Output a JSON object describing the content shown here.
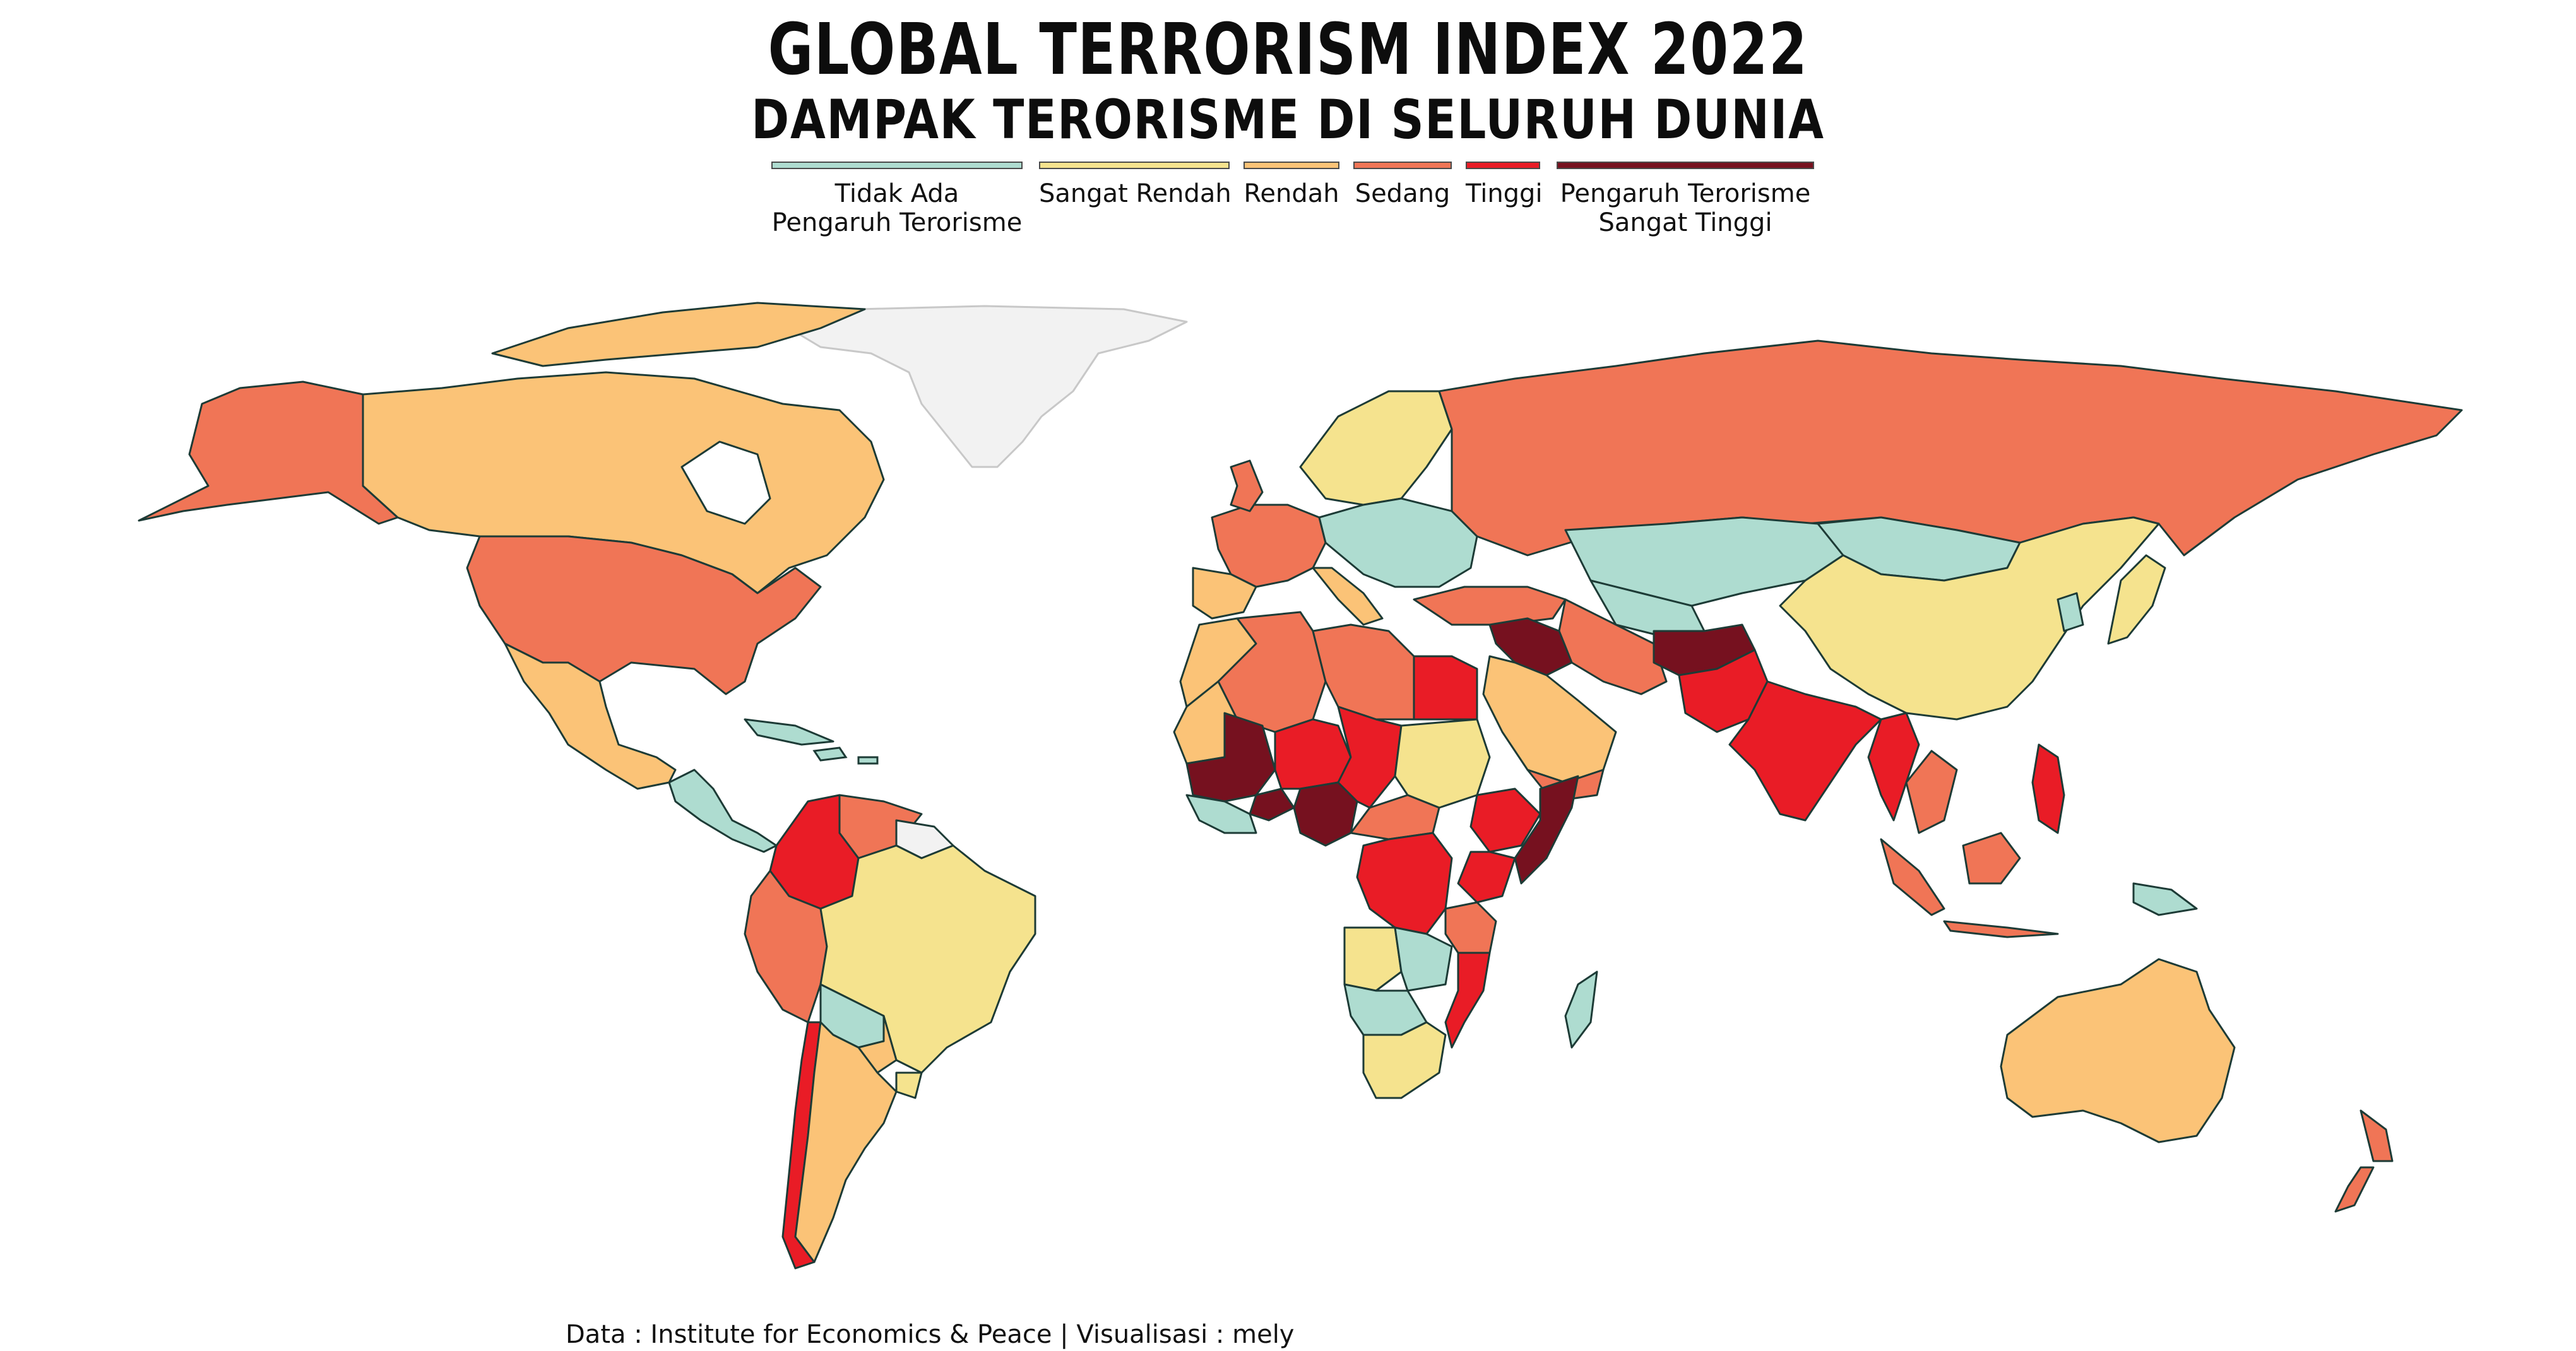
{
  "title": "GLOBAL TERRORISM INDEX 2022",
  "subtitle": "DAMPAK TERORISME DI SELURUH DUNIA",
  "legend": [
    {
      "label": "Tidak Ada\nPengaruh Terorisme",
      "color": "#aedcd0"
    },
    {
      "label": "Sangat Rendah",
      "color": "#f5e38e"
    },
    {
      "label": "Rendah",
      "color": "#fbc377"
    },
    {
      "label": "Sedang",
      "color": "#f07556"
    },
    {
      "label": "Tinggi",
      "color": "#e91c26"
    },
    {
      "label": "Pengaruh Terorisme\nSangat Tinggi",
      "color": "#76111f"
    }
  ],
  "no_data_color": "#f2f2f2",
  "border_color": "#1d3b36",
  "caption": "Data : Institute for Economics & Peace | Visualisasi : mely",
  "regions": [
    {
      "name": "Greenland",
      "level": "no-data"
    },
    {
      "name": "Canada",
      "level": "Rendah"
    },
    {
      "name": "Alaska",
      "level": "Sedang"
    },
    {
      "name": "United States",
      "level": "Sedang"
    },
    {
      "name": "Mexico",
      "level": "Rendah"
    },
    {
      "name": "Central America",
      "level": "Tidak Ada"
    },
    {
      "name": "Colombia",
      "level": "Tinggi"
    },
    {
      "name": "Venezuela",
      "level": "Sedang"
    },
    {
      "name": "Brazil",
      "level": "Sangat Rendah"
    },
    {
      "name": "Peru",
      "level": "Sedang"
    },
    {
      "name": "Bolivia",
      "level": "Tidak Ada"
    },
    {
      "name": "Chile",
      "level": "Tinggi"
    },
    {
      "name": "Argentina",
      "level": "Rendah"
    },
    {
      "name": "Paraguay",
      "level": "Rendah"
    },
    {
      "name": "Uruguay",
      "level": "Sangat Rendah"
    },
    {
      "name": "Russia",
      "level": "Sedang"
    },
    {
      "name": "Kazakhstan",
      "level": "Tidak Ada"
    },
    {
      "name": "Mongolia",
      "level": "Tidak Ada"
    },
    {
      "name": "China",
      "level": "Sangat Rendah"
    },
    {
      "name": "Iraq",
      "level": "Pengaruh Terorisme Sangat Tinggi"
    },
    {
      "name": "Afghanistan",
      "level": "Pengaruh Terorisme Sangat Tinggi"
    },
    {
      "name": "Pakistan",
      "level": "Tinggi"
    },
    {
      "name": "India",
      "level": "Tinggi"
    },
    {
      "name": "Myanmar",
      "level": "Tinggi"
    },
    {
      "name": "Iran",
      "level": "Sedang"
    },
    {
      "name": "Saudi Arabia",
      "level": "Rendah"
    },
    {
      "name": "Turkey",
      "level": "Sedang"
    },
    {
      "name": "Mali",
      "level": "Pengaruh Terorisme Sangat Tinggi"
    },
    {
      "name": "Burkina Faso",
      "level": "Pengaruh Terorisme Sangat Tinggi"
    },
    {
      "name": "Nigeria",
      "level": "Pengaruh Terorisme Sangat Tinggi"
    },
    {
      "name": "Somalia",
      "level": "Pengaruh Terorisme Sangat Tinggi"
    },
    {
      "name": "Niger",
      "level": "Tinggi"
    },
    {
      "name": "Chad",
      "level": "Tinggi"
    },
    {
      "name": "Egypt",
      "level": "Tinggi"
    },
    {
      "name": "Algeria",
      "level": "Sedang"
    },
    {
      "name": "Libya",
      "level": "Sedang"
    },
    {
      "name": "Sudan",
      "level": "Sangat Rendah"
    },
    {
      "name": "DR Congo",
      "level": "Tinggi"
    },
    {
      "name": "Mozambique",
      "level": "Tinggi"
    },
    {
      "name": "Kenya",
      "level": "Tinggi"
    },
    {
      "name": "Ethiopia",
      "level": "Tinggi"
    },
    {
      "name": "Angola",
      "level": "Sangat Rendah"
    },
    {
      "name": "Namibia",
      "level": "Tidak Ada"
    },
    {
      "name": "South Africa",
      "level": "Sangat Rendah"
    },
    {
      "name": "Madagascar",
      "level": "Tidak Ada"
    },
    {
      "name": "Australia",
      "level": "Rendah"
    },
    {
      "name": "New Zealand",
      "level": "Sedang"
    },
    {
      "name": "Indonesia",
      "level": "Sedang"
    },
    {
      "name": "Philippines",
      "level": "Tinggi"
    },
    {
      "name": "Papua New Guinea",
      "level": "Tidak Ada"
    },
    {
      "name": "Scandinavia",
      "level": "Sangat Rendah"
    },
    {
      "name": "Western Europe",
      "level": "Sedang"
    },
    {
      "name": "Eastern Europe",
      "level": "Tidak Ada"
    },
    {
      "name": "Japan",
      "level": "Sangat Rendah"
    }
  ]
}
